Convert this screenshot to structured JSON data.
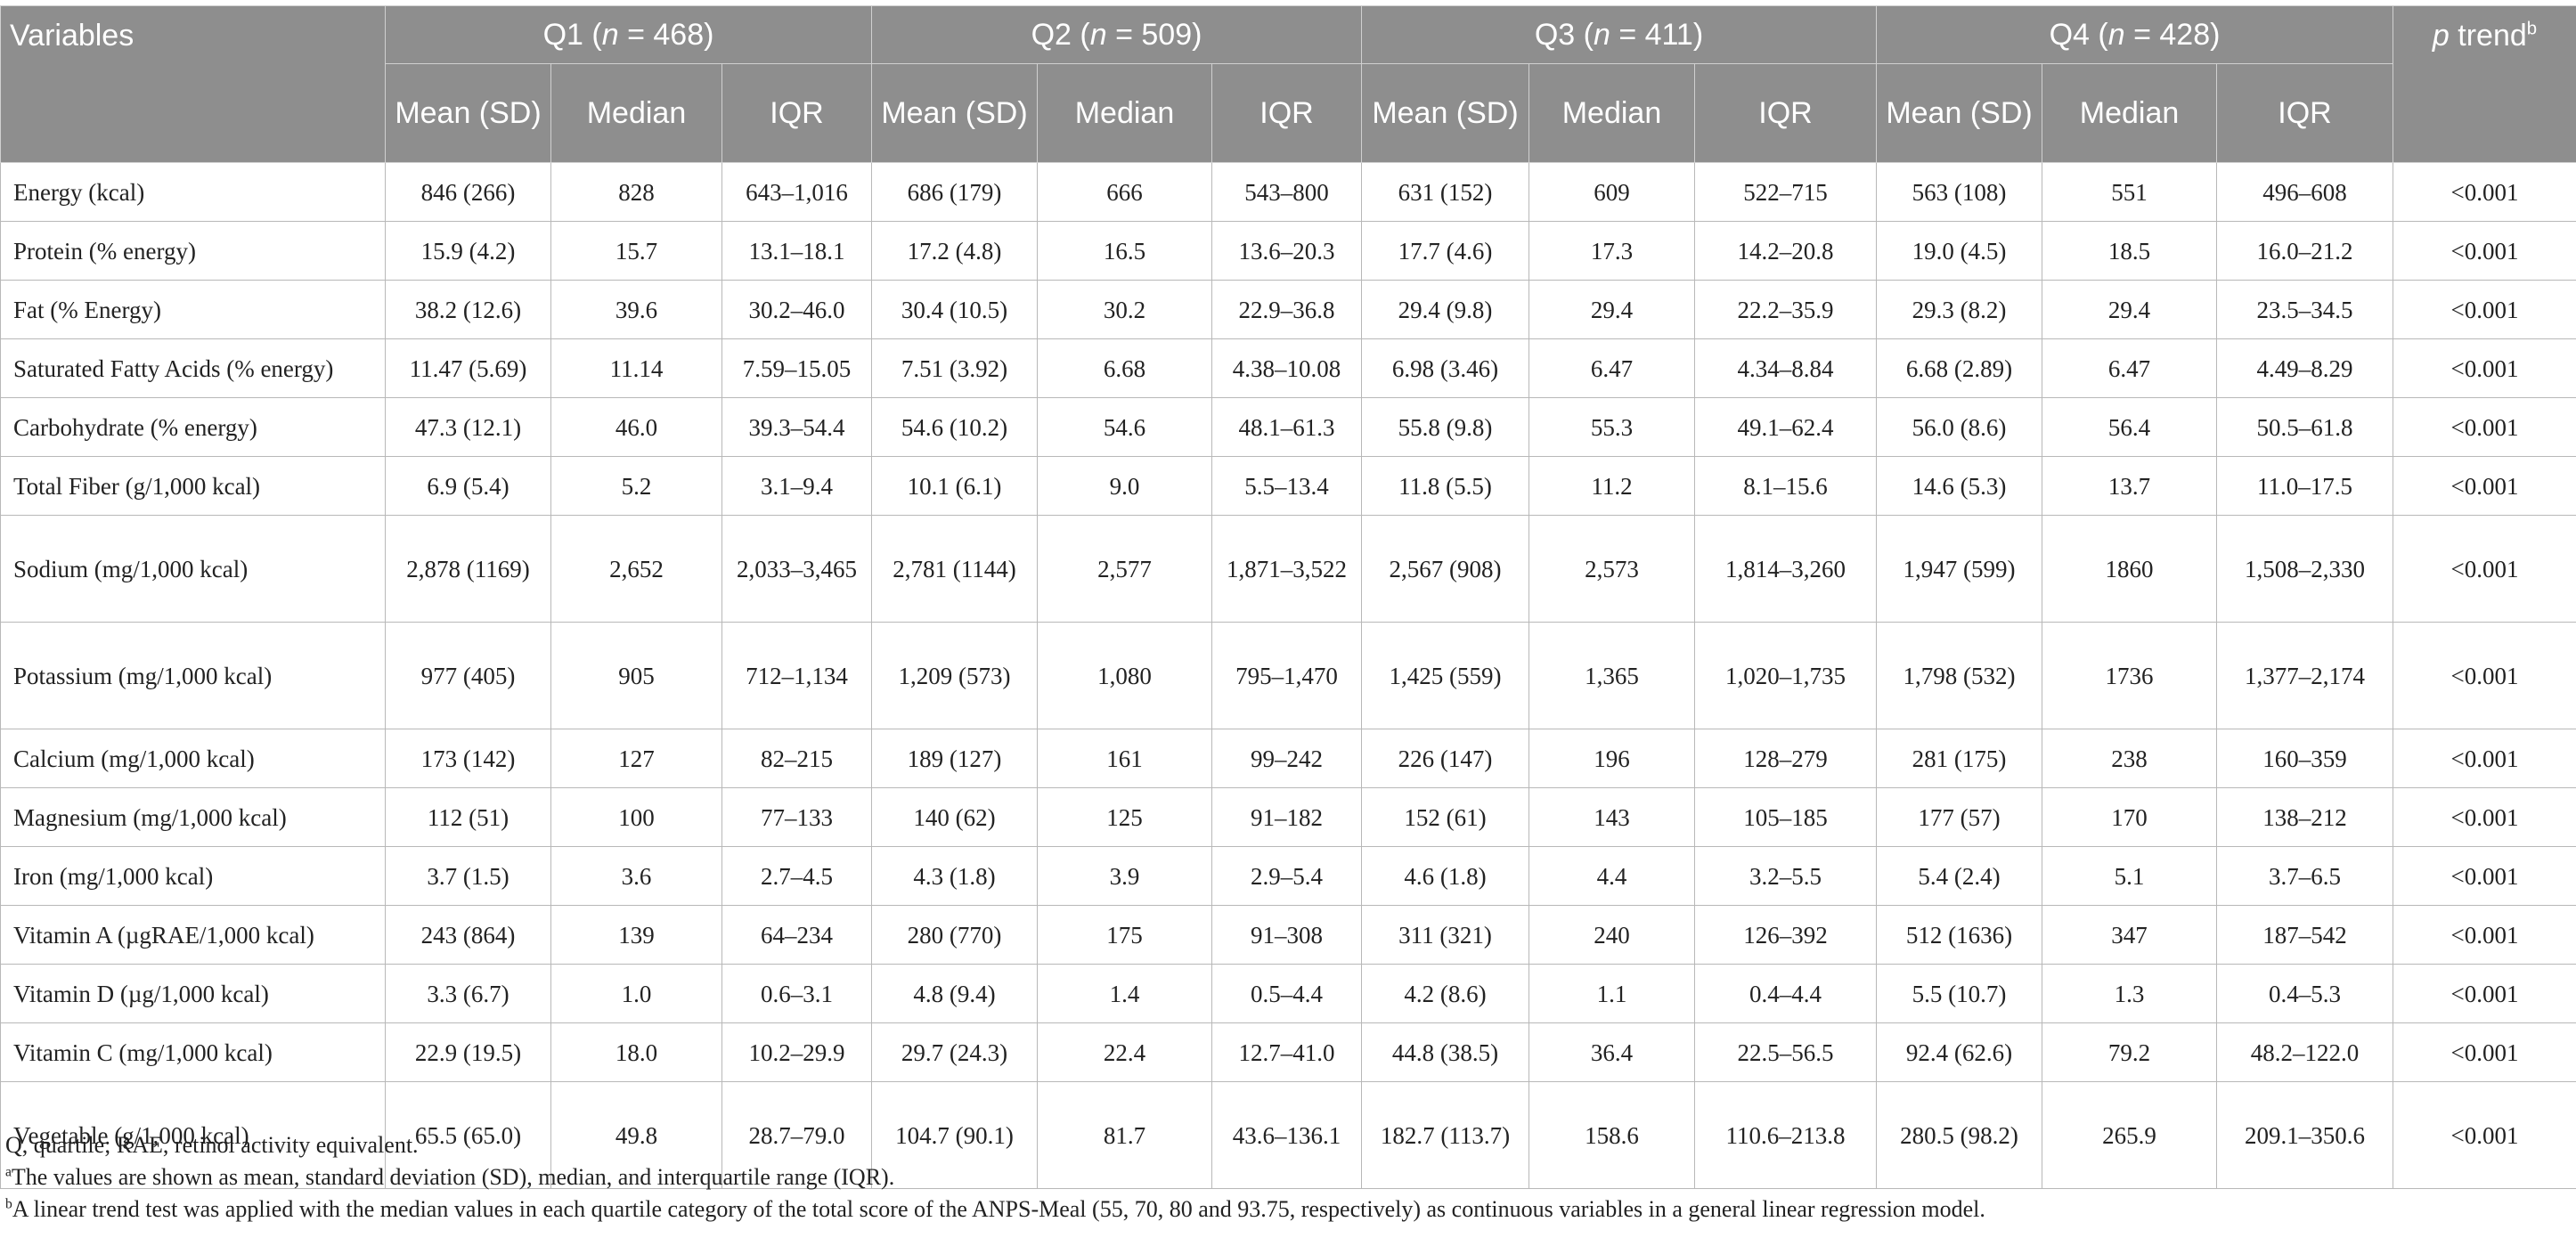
{
  "table": {
    "header": {
      "variables": "Variables",
      "groups": [
        {
          "name": "Q1",
          "n": "468"
        },
        {
          "name": "Q2",
          "n": "509"
        },
        {
          "name": "Q3",
          "n": "411"
        },
        {
          "name": "Q4",
          "n": "428"
        }
      ],
      "n_label": "n",
      "eq": " = ",
      "p": "p",
      "trend": " trend",
      "trend_mark": "b",
      "sub": [
        "Mean (SD)",
        "Median",
        "IQR"
      ]
    },
    "rows": [
      {
        "label": "Energy (kcal)",
        "cells": [
          "846 (266)",
          "828",
          "643–1,016",
          "686 (179)",
          "666",
          "543–800",
          "631 (152)",
          "609",
          "522–715",
          "563 (108)",
          "551",
          "496–608"
        ],
        "p": "<0.001"
      },
      {
        "label": "Protein (% energy)",
        "cells": [
          "15.9 (4.2)",
          "15.7",
          "13.1–18.1",
          "17.2 (4.8)",
          "16.5",
          "13.6–20.3",
          "17.7 (4.6)",
          "17.3",
          "14.2–20.8",
          "19.0 (4.5)",
          "18.5",
          "16.0–21.2"
        ],
        "p": "<0.001"
      },
      {
        "label": "Fat (% Energy)",
        "cells": [
          "38.2 (12.6)",
          "39.6",
          "30.2–46.0",
          "30.4 (10.5)",
          "30.2",
          "22.9–36.8",
          "29.4 (9.8)",
          "29.4",
          "22.2–35.9",
          "29.3 (8.2)",
          "29.4",
          "23.5–34.5"
        ],
        "p": "<0.001"
      },
      {
        "label": "Saturated Fatty Acids (% energy)",
        "cells": [
          "11.47 (5.69)",
          "11.14",
          "7.59–15.05",
          "7.51 (3.92)",
          "6.68",
          "4.38–10.08",
          "6.98 (3.46)",
          "6.47",
          "4.34–8.84",
          "6.68 (2.89)",
          "6.47",
          "4.49–8.29"
        ],
        "p": "<0.001"
      },
      {
        "label": "Carbohydrate (% energy)",
        "cells": [
          "47.3 (12.1)",
          "46.0",
          "39.3–54.4",
          "54.6 (10.2)",
          "54.6",
          "48.1–61.3",
          "55.8 (9.8)",
          "55.3",
          "49.1–62.4",
          "56.0 (8.6)",
          "56.4",
          "50.5–61.8"
        ],
        "p": "<0.001"
      },
      {
        "label": "Total Fiber (g/1,000 kcal)",
        "cells": [
          "6.9 (5.4)",
          "5.2",
          "3.1–9.4",
          "10.1 (6.1)",
          "9.0",
          "5.5–13.4",
          "11.8 (5.5)",
          "11.2",
          "8.1–15.6",
          "14.6 (5.3)",
          "13.7",
          "11.0–17.5"
        ],
        "p": "<0.001"
      },
      {
        "label": "Sodium (mg/1,000 kcal)",
        "cells": [
          "2,878 (1169)",
          "2,652",
          "2,033–3,465",
          "2,781 (1144)",
          "2,577",
          "1,871–3,522",
          "2,567 (908)",
          "2,573",
          "1,814–3,260",
          "1,947 (599)",
          "1860",
          "1,508–2,330"
        ],
        "p": "<0.001"
      },
      {
        "label": "Potassium (mg/1,000 kcal)",
        "cells": [
          "977 (405)",
          "905",
          "712–1,134",
          "1,209 (573)",
          "1,080",
          "795–1,470",
          "1,425 (559)",
          "1,365",
          "1,020–1,735",
          "1,798 (532)",
          "1736",
          "1,377–2,174"
        ],
        "p": "<0.001"
      },
      {
        "label": "Calcium (mg/1,000 kcal)",
        "cells": [
          "173 (142)",
          "127",
          "82–215",
          "189 (127)",
          "161",
          "99–242",
          "226 (147)",
          "196",
          "128–279",
          "281 (175)",
          "238",
          "160–359"
        ],
        "p": "<0.001"
      },
      {
        "label": "Magnesium (mg/1,000 kcal)",
        "cells": [
          "112 (51)",
          "100",
          "77–133",
          "140 (62)",
          "125",
          "91–182",
          "152 (61)",
          "143",
          "105–185",
          "177 (57)",
          "170",
          "138–212"
        ],
        "p": "<0.001"
      },
      {
        "label": "Iron (mg/1,000 kcal)",
        "cells": [
          "3.7 (1.5)",
          "3.6",
          "2.7–4.5",
          "4.3 (1.8)",
          "3.9",
          "2.9–5.4",
          "4.6 (1.8)",
          "4.4",
          "3.2–5.5",
          "5.4 (2.4)",
          "5.1",
          "3.7–6.5"
        ],
        "p": "<0.001"
      },
      {
        "label": "Vitamin A (µgRAE/1,000 kcal)",
        "cells": [
          "243 (864)",
          "139",
          "64–234",
          "280 (770)",
          "175",
          "91–308",
          "311 (321)",
          "240",
          "126–392",
          "512 (1636)",
          "347",
          "187–542"
        ],
        "p": "<0.001"
      },
      {
        "label": "Vitamin D (µg/1,000 kcal)",
        "cells": [
          "3.3 (6.7)",
          "1.0",
          "0.6–3.1",
          "4.8 (9.4)",
          "1.4",
          "0.5–4.4",
          "4.2 (8.6)",
          "1.1",
          "0.4–4.4",
          "5.5 (10.7)",
          "1.3",
          "0.4–5.3"
        ],
        "p": "<0.001"
      },
      {
        "label": "Vitamin C (mg/1,000 kcal)",
        "cells": [
          "22.9 (19.5)",
          "18.0",
          "10.2–29.9",
          "29.7 (24.3)",
          "22.4",
          "12.7–41.0",
          "44.8 (38.5)",
          "36.4",
          "22.5–56.5",
          "92.4 (62.6)",
          "79.2",
          "48.2–122.0"
        ],
        "p": "<0.001"
      },
      {
        "label": "Vegetable (g/1,000 kcal)",
        "cells": [
          "65.5 (65.0)",
          "49.8",
          "28.7–79.0",
          "104.7 (90.1)",
          "81.7",
          "43.6–136.1",
          "182.7 (113.7)",
          "158.6",
          "110.6–213.8",
          "280.5 (98.2)",
          "265.9",
          "209.1–350.6"
        ],
        "p": "<0.001"
      }
    ]
  },
  "footnotes": {
    "abbrev": "Q, quartile; RAE, retinol activity equivalent.",
    "a_mark": "a",
    "a_text": "The values are shown as mean, standard deviation (SD), median, and interquartile range (IQR).",
    "b_mark": "b",
    "b_text": "A linear trend test was applied with the median values in each quartile category of the total score of the ANPS-Meal (55, 70, 80 and 93.75, respectively) as continuous variables in a general linear regression model."
  }
}
